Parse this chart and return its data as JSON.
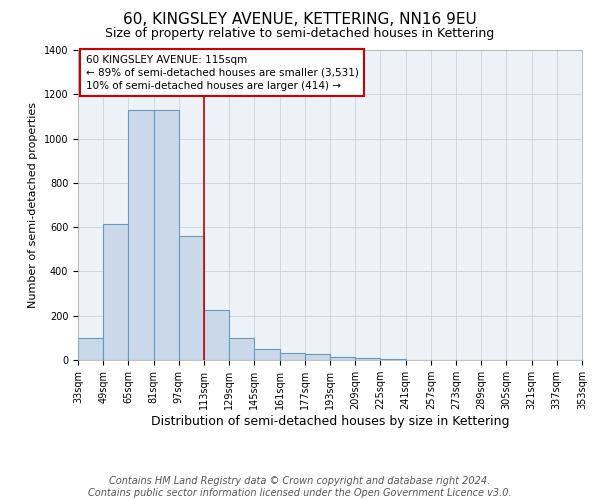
{
  "title": "60, KINGSLEY AVENUE, KETTERING, NN16 9EU",
  "subtitle": "Size of property relative to semi-detached houses in Kettering",
  "xlabel": "Distribution of semi-detached houses by size in Kettering",
  "ylabel": "Number of semi-detached properties",
  "bin_edges": [
    33,
    49,
    65,
    81,
    97,
    113,
    129,
    145,
    161,
    177,
    193,
    209,
    225,
    241,
    257,
    273,
    289,
    305,
    321,
    337,
    353
  ],
  "bar_heights": [
    100,
    615,
    1130,
    1130,
    560,
    225,
    100,
    50,
    30,
    25,
    15,
    10,
    5,
    0,
    0,
    0,
    0,
    0,
    0,
    0
  ],
  "bar_color": "#c9d9ea",
  "bar_edge_color": "#6699bb",
  "vline_x": 113,
  "vline_color": "#cc0000",
  "ylim": [
    0,
    1400
  ],
  "yticks": [
    0,
    200,
    400,
    600,
    800,
    1000,
    1200,
    1400
  ],
  "annotation_text": "60 KINGSLEY AVENUE: 115sqm\n← 89% of semi-detached houses are smaller (3,531)\n10% of semi-detached houses are larger (414) →",
  "annotation_box_color": "#cc0000",
  "footer_line1": "Contains HM Land Registry data © Crown copyright and database right 2024.",
  "footer_line2": "Contains public sector information licensed under the Open Government Licence v3.0.",
  "title_fontsize": 11,
  "subtitle_fontsize": 9,
  "xlabel_fontsize": 9,
  "ylabel_fontsize": 8,
  "tick_fontsize": 7,
  "annotation_fontsize": 7.5,
  "footer_fontsize": 7,
  "grid_color": "#c8d4e0",
  "background_color": "#edf2f7"
}
